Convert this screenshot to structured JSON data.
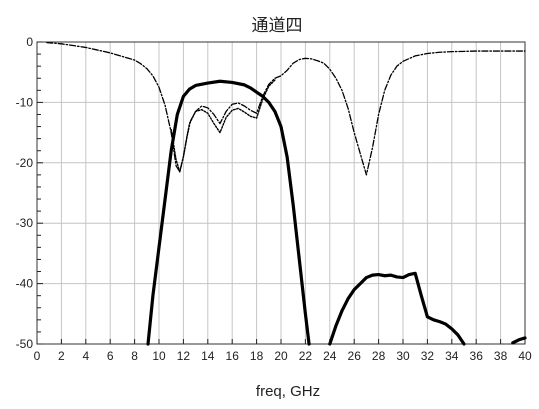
{
  "chart_data": {
    "type": "line",
    "title": "通道四",
    "xlabel": "freq, GHz",
    "ylabel": "",
    "xlim": [
      0,
      40
    ],
    "ylim": [
      -50,
      0
    ],
    "x_ticks": [
      0,
      2,
      4,
      6,
      8,
      10,
      12,
      14,
      16,
      18,
      20,
      22,
      24,
      26,
      28,
      30,
      32,
      34,
      36,
      38,
      40
    ],
    "y_ticks": [
      0,
      -10,
      -20,
      -30,
      -40,
      -50
    ],
    "y_minor_step": 2,
    "grid": true,
    "legend": "none",
    "series": [
      {
        "style": "solid-thick",
        "color": "#000000",
        "x": [
          9.1,
          9.5,
          10.0,
          10.5,
          11.0,
          11.5,
          12.0,
          12.5,
          13.0,
          14.0,
          15.0,
          16.0,
          17.0,
          17.5,
          18.0,
          18.5,
          19.0,
          19.5,
          20.0,
          20.5,
          21.0,
          21.5,
          22.0,
          22.3
        ],
        "y": [
          -50,
          -42,
          -34,
          -26,
          -18,
          -12,
          -9,
          -7.8,
          -7.2,
          -6.8,
          -6.5,
          -6.7,
          -7.1,
          -7.6,
          -8.3,
          -9.0,
          -10.0,
          -11.5,
          -14,
          -19,
          -27,
          -36,
          -45,
          -50
        ]
      },
      {
        "style": "solid-thick",
        "color": "#000000",
        "x": [
          24.0,
          24.5,
          25.0,
          25.5,
          26.0,
          26.5,
          27.0,
          27.5,
          28.0,
          28.5,
          29.0,
          29.5,
          30.0,
          30.5,
          31.0,
          31.5,
          32.0,
          32.5,
          33.0,
          33.5,
          34.0,
          34.5,
          35.0
        ],
        "y": [
          -50,
          -47,
          -44.5,
          -42.5,
          -41,
          -40,
          -39,
          -38.6,
          -38.5,
          -38.7,
          -38.6,
          -38.9,
          -39.0,
          -38.5,
          -38.3,
          -42,
          -45.5,
          -46,
          -46.3,
          -46.7,
          -47.5,
          -48.5,
          -50
        ]
      },
      {
        "style": "solid-thick",
        "color": "#000000",
        "x": [
          39.0,
          39.5,
          40.0
        ],
        "y": [
          -49.8,
          -49.3,
          -49.0
        ]
      },
      {
        "style": "dash-dot",
        "color": "#000000",
        "x": [
          0.8,
          2.0,
          4.0,
          6.0,
          7.0,
          8.0,
          8.5,
          9.0,
          9.5,
          10.0,
          10.5,
          11.0,
          11.4,
          11.7,
          12.0,
          12.3,
          12.6,
          13.0,
          13.5,
          14.0,
          14.5,
          15.0,
          15.5,
          16.0,
          16.5,
          17.0,
          17.5,
          18.0,
          18.5,
          19.0,
          19.5,
          20.0,
          20.5,
          21.0,
          21.5,
          22.0,
          22.5,
          23.0,
          23.5,
          24.0,
          24.5,
          25.0,
          25.5,
          26.0,
          26.5,
          27.0,
          27.5,
          28.0,
          28.5,
          29.0,
          29.5,
          30.0,
          31.0,
          32.0,
          33.0,
          34.0,
          36.0,
          38.0,
          40.0
        ],
        "y": [
          -0.1,
          -0.3,
          -0.9,
          -1.8,
          -2.4,
          -3.0,
          -3.6,
          -4.4,
          -5.6,
          -7.5,
          -10.5,
          -15,
          -20.5,
          -21.5,
          -19,
          -15.5,
          -13,
          -11.5,
          -10.6,
          -10.9,
          -12.0,
          -13.5,
          -11.5,
          -10.3,
          -10.1,
          -10.6,
          -11.3,
          -11.8,
          -9.0,
          -7.0,
          -6.0,
          -5.6,
          -4.7,
          -3.5,
          -2.9,
          -2.7,
          -2.8,
          -3.1,
          -3.5,
          -4.5,
          -6.0,
          -8.0,
          -11.0,
          -15,
          -18.5,
          -22.0,
          -17.5,
          -12.0,
          -8.0,
          -5.5,
          -4.0,
          -3.2,
          -2.3,
          -1.9,
          -1.7,
          -1.6,
          -1.5,
          -1.5,
          -1.5
        ]
      },
      {
        "style": "dotted",
        "color": "#000000",
        "x": [
          11.0,
          11.4,
          11.7,
          12.0,
          12.5,
          13.0,
          13.5,
          14.0,
          14.5,
          15.0,
          15.5,
          16.0,
          16.5,
          17.0,
          17.5,
          18.0,
          18.5,
          19.0,
          19.5
        ],
        "y": [
          -14.5,
          -19.5,
          -21.5,
          -19,
          -13.5,
          -11.5,
          -11.2,
          -11.8,
          -13.5,
          -15.0,
          -12.5,
          -11.3,
          -11.0,
          -11.6,
          -12.3,
          -12.6,
          -9.5,
          -7.3,
          -6.3
        ]
      }
    ]
  }
}
